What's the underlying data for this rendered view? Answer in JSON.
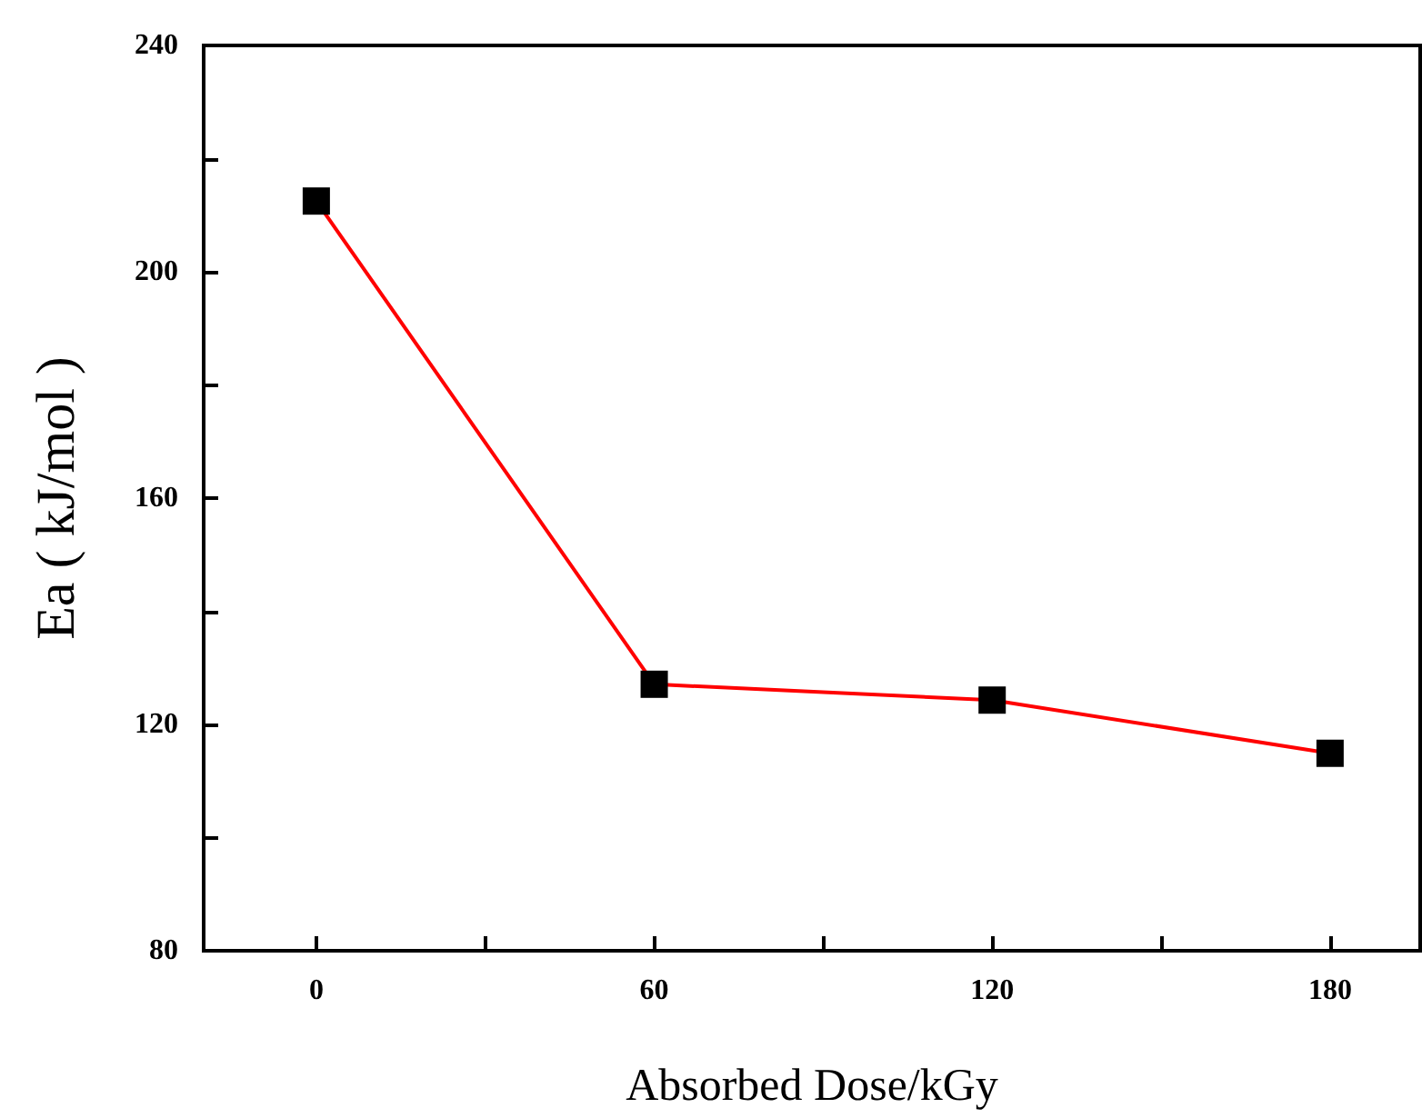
{
  "chart_data": {
    "type": "line",
    "xlabel": "Absorbed Dose/kGy",
    "ylabel": "Ea ( kJ/mol )",
    "x": [
      0,
      60,
      120,
      180
    ],
    "series": [
      {
        "color": "#ff0000",
        "values": [
          212.5,
          127.1,
          124.3,
          114.9
        ]
      }
    ],
    "xlim": [
      -20,
      196
    ],
    "xticks": [
      0,
      {
        "value": 30,
        "label": null
      },
      60,
      {
        "value": 90,
        "label": null
      },
      120,
      {
        "value": 150,
        "label": null
      },
      180
    ],
    "ylim": [
      80,
      240
    ],
    "yticks": [
      80,
      {
        "value": 100,
        "label": null
      },
      120,
      {
        "value": 140,
        "label": null
      },
      160,
      {
        "value": 180,
        "label": null
      },
      200,
      {
        "value": 220,
        "label": null
      },
      240
    ],
    "marker": "square",
    "grid": false
  }
}
